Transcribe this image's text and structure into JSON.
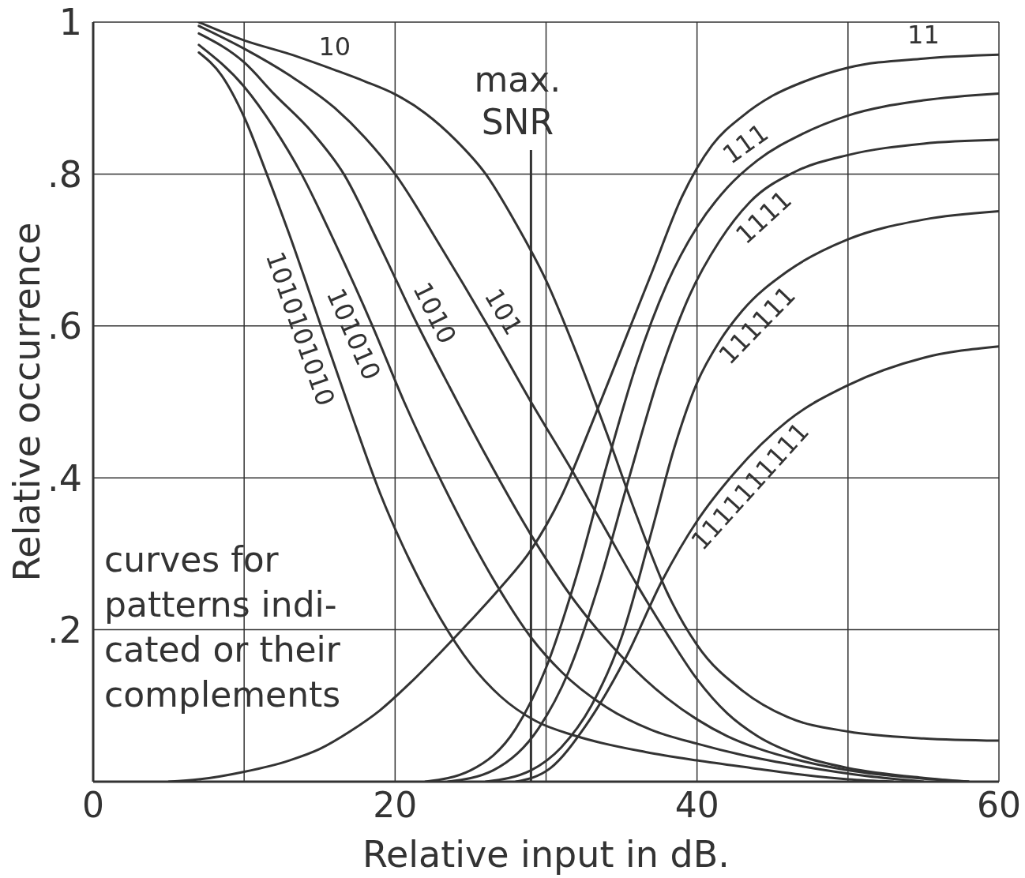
{
  "chart_data": {
    "type": "line",
    "xlabel": "Relative input in dB.",
    "ylabel": "Relative occurrence",
    "xlim": [
      0,
      60
    ],
    "ylim": [
      0,
      1
    ],
    "xticks": [
      0,
      {
        "value": 10,
        "label": null
      },
      20,
      {
        "value": 30,
        "label": null
      },
      40,
      {
        "value": 50,
        "label": null
      },
      60
    ],
    "yticks": [
      {
        "value": 0,
        "label": null
      },
      {
        "value": 0.2,
        "label": ".2"
      },
      {
        "value": 0.4,
        "label": ".4"
      },
      {
        "value": 0.6,
        "label": ".6"
      },
      {
        "value": 0.8,
        "label": ".8"
      },
      1
    ],
    "grid": true,
    "ref_lines": [
      {
        "axis": "x",
        "value": 29,
        "label": "max.\nSNR",
        "color": "#333333"
      }
    ],
    "annotations": [
      "curves for\npatterns indi-\ncated or their\ncomplements"
    ],
    "series": [
      {
        "name": "10",
        "color": "#333333",
        "x": [
          7,
          10,
          13,
          16,
          18,
          20,
          22,
          24,
          26,
          28,
          30,
          32,
          34,
          36,
          38,
          40,
          43,
          46,
          50,
          55,
          60
        ],
        "values": [
          1,
          0.976,
          0.958,
          0.937,
          0.922,
          0.905,
          0.88,
          0.845,
          0.8,
          0.735,
          0.66,
          0.565,
          0.46,
          0.35,
          0.25,
          0.18,
          0.12,
          0.085,
          0.066,
          0.057,
          0.054
        ]
      },
      {
        "name": "101",
        "color": "#333333",
        "x": [
          7,
          10,
          13,
          16,
          18,
          20,
          23,
          26,
          29,
          32,
          34,
          36,
          38,
          40,
          42,
          44,
          47,
          50,
          55,
          58
        ],
        "values": [
          0.995,
          0.965,
          0.93,
          0.887,
          0.848,
          0.8,
          0.705,
          0.605,
          0.5,
          0.4,
          0.33,
          0.26,
          0.195,
          0.135,
          0.09,
          0.06,
          0.033,
          0.018,
          0.005,
          0
        ]
      },
      {
        "name": "1010",
        "color": "#333333",
        "x": [
          7,
          10,
          12,
          14.5,
          16.6,
          19,
          21.4,
          23.6,
          26,
          29,
          32,
          35,
          38,
          40,
          42,
          44,
          47,
          50,
          55,
          58
        ],
        "values": [
          0.985,
          0.947,
          0.905,
          0.855,
          0.8,
          0.705,
          0.605,
          0.52,
          0.43,
          0.325,
          0.235,
          0.165,
          0.11,
          0.082,
          0.06,
          0.044,
          0.027,
          0.015,
          0.004,
          0
        ]
      },
      {
        "name": "101010",
        "color": "#333333",
        "x": [
          7,
          10,
          12,
          13.8,
          16,
          18.5,
          20.6,
          23.2,
          26.7,
          29,
          31,
          34,
          37,
          40,
          43,
          47,
          51,
          55
        ],
        "values": [
          0.97,
          0.915,
          0.86,
          0.8,
          0.71,
          0.6,
          0.5,
          0.39,
          0.26,
          0.19,
          0.145,
          0.098,
          0.068,
          0.05,
          0.035,
          0.02,
          0.008,
          0
        ]
      },
      {
        "name": "1010101010",
        "color": "#333333",
        "x": [
          7,
          8.5,
          10,
          11.5,
          13,
          15,
          17,
          19,
          21,
          23,
          25,
          27,
          29.3,
          32,
          36.6,
          40,
          43.6,
          47,
          50,
          53
        ],
        "values": [
          0.96,
          0.93,
          0.875,
          0.8,
          0.72,
          0.605,
          0.49,
          0.38,
          0.29,
          0.215,
          0.155,
          0.112,
          0.08,
          0.06,
          0.039,
          0.028,
          0.018,
          0.009,
          0.003,
          0
        ]
      },
      {
        "name": "11",
        "color": "#333333",
        "x": [
          5,
          7,
          10,
          13,
          15,
          17,
          19,
          21,
          23,
          25,
          27,
          29,
          31,
          33,
          35,
          37,
          39,
          41,
          43,
          45,
          47,
          50,
          55,
          60
        ],
        "values": [
          0,
          0.003,
          0.013,
          0.028,
          0.043,
          0.066,
          0.094,
          0.13,
          0.17,
          0.212,
          0.256,
          0.305,
          0.375,
          0.47,
          0.57,
          0.67,
          0.77,
          0.838,
          0.876,
          0.903,
          0.921,
          0.94,
          0.952,
          0.957
        ]
      },
      {
        "name": "111",
        "color": "#333333",
        "x": [
          22,
          25,
          28,
          30,
          32,
          34,
          36,
          38,
          40,
          42,
          44,
          47,
          50,
          55,
          60
        ],
        "values": [
          0,
          0.015,
          0.07,
          0.15,
          0.27,
          0.415,
          0.55,
          0.655,
          0.73,
          0.782,
          0.818,
          0.853,
          0.877,
          0.897,
          0.906
        ]
      },
      {
        "name": "1111",
        "color": "#333333",
        "x": [
          23.5,
          26.5,
          29.5,
          31.5,
          33.5,
          35.5,
          37.5,
          39.5,
          41.5,
          43.5,
          46.5,
          50,
          55,
          60
        ],
        "values": [
          0,
          0.015,
          0.07,
          0.145,
          0.26,
          0.4,
          0.535,
          0.64,
          0.712,
          0.763,
          0.803,
          0.825,
          0.84,
          0.845
        ]
      },
      {
        "name": "111111",
        "color": "#333333",
        "x": [
          26,
          29,
          31,
          33,
          35,
          37,
          38.5,
          40,
          41.5,
          43,
          46,
          50,
          55,
          60
        ],
        "values": [
          0,
          0.015,
          0.045,
          0.1,
          0.19,
          0.33,
          0.44,
          0.525,
          0.58,
          0.62,
          0.672,
          0.714,
          0.74,
          0.751
        ]
      },
      {
        "name": "1111111111",
        "color": "#333333",
        "x": [
          28,
          30.3,
          32.6,
          35.3,
          37.7,
          40,
          42.5,
          46,
          50,
          55,
          60
        ],
        "values": [
          0,
          0.018,
          0.073,
          0.164,
          0.265,
          0.343,
          0.407,
          0.475,
          0.522,
          0.558,
          0.573
        ]
      }
    ]
  }
}
